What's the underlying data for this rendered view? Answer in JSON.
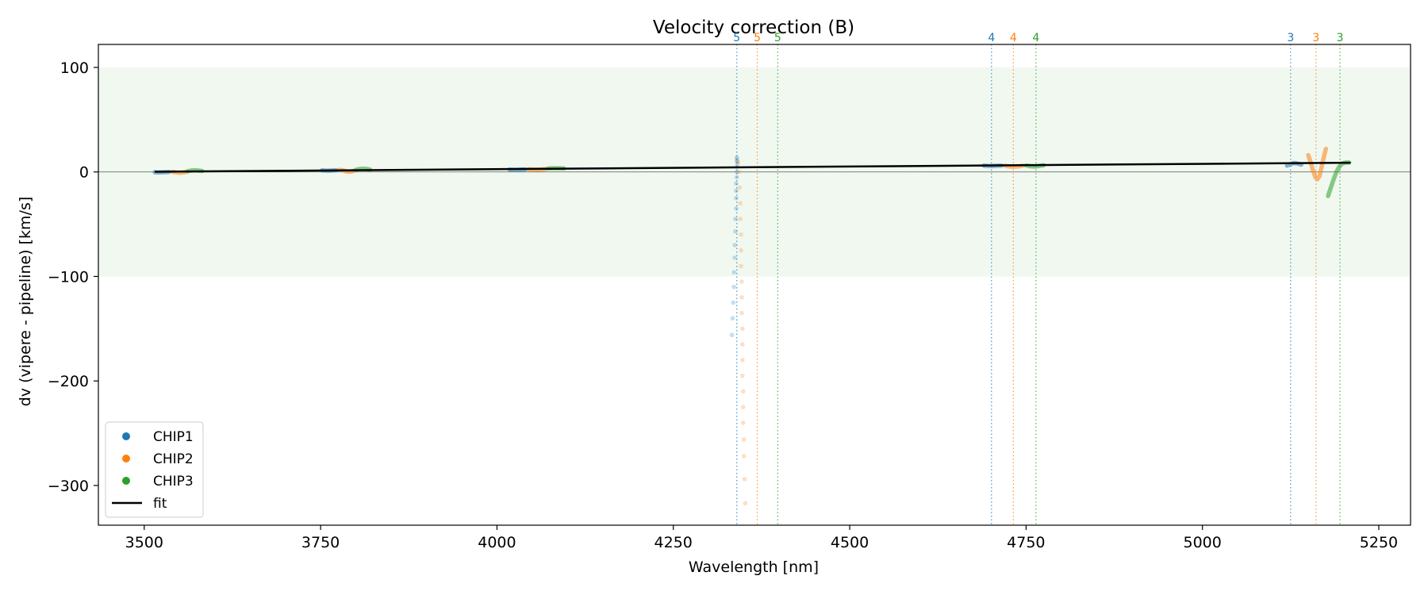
{
  "chart_data": {
    "type": "scatter",
    "title": "Velocity correction (B)",
    "xlabel": "Wavelength [nm]",
    "ylabel": "dv (vipere - pipeline) [km/s]",
    "xlim": [
      3435,
      5295
    ],
    "ylim": [
      -338,
      122
    ],
    "xticks": [
      3500,
      3750,
      4000,
      4250,
      4500,
      4750,
      5000,
      5250
    ],
    "yticks": [
      -300,
      -200,
      -100,
      0,
      100
    ],
    "shaded_band": {
      "y0": -100,
      "y1": 100,
      "color": "#2ca02c"
    },
    "zero_line": 0,
    "grid": false,
    "legend_position": "lower-left",
    "colors": {
      "CHIP1": "#1f77b4",
      "CHIP2": "#ff7f0e",
      "CHIP3": "#2ca02c",
      "fit": "#000000"
    },
    "series": [
      {
        "name": "CHIP1",
        "color": "#1f77b4",
        "segments": [
          {
            "x0": 3515,
            "x1": 3535,
            "points": [
              [
                3515,
                -0.3
              ],
              [
                3520,
                -0.5
              ],
              [
                3525,
                -0.4
              ],
              [
                3530,
                -0.2
              ],
              [
                3535,
                0.0
              ]
            ]
          },
          {
            "x0": 3752,
            "x1": 3772,
            "points": [
              [
                3752,
                1.5
              ],
              [
                3757,
                1.3
              ],
              [
                3762,
                1.2
              ],
              [
                3767,
                1.4
              ],
              [
                3772,
                1.6
              ]
            ]
          },
          {
            "x0": 4018,
            "x1": 4040,
            "points": [
              [
                4018,
                2.3
              ],
              [
                4023,
                2.1
              ],
              [
                4028,
                2.0
              ],
              [
                4034,
                2.2
              ],
              [
                4040,
                2.4
              ]
            ]
          },
          {
            "x0": 4690,
            "x1": 4715,
            "points": [
              [
                4690,
                6.0
              ],
              [
                4696,
                5.8
              ],
              [
                4702,
                5.7
              ],
              [
                4709,
                5.9
              ],
              [
                4715,
                6.1
              ]
            ]
          },
          {
            "x0": 5120,
            "x1": 5140,
            "points": [
              [
                5120,
                6.0
              ],
              [
                5125,
                7.5
              ],
              [
                5130,
                8.5
              ],
              [
                5135,
                8.0
              ],
              [
                5140,
                7.0
              ]
            ]
          }
        ],
        "scatter_points": [
          [
            4340,
            14
          ],
          [
            4340,
            12
          ],
          [
            4340,
            10
          ],
          [
            4341,
            8
          ],
          [
            4340,
            5
          ],
          [
            4340,
            0
          ],
          [
            4340,
            -5
          ],
          [
            4339,
            -11
          ],
          [
            4339,
            -18
          ],
          [
            4339,
            -25
          ],
          [
            4339,
            -35
          ],
          [
            4338,
            -45
          ],
          [
            4338,
            -57
          ],
          [
            4337,
            -70
          ],
          [
            4337,
            -82
          ],
          [
            4336,
            -96
          ],
          [
            4336,
            -110
          ],
          [
            4335,
            -125
          ],
          [
            4334,
            -140
          ],
          [
            4333,
            -156
          ]
        ]
      },
      {
        "name": "CHIP2",
        "color": "#ff7f0e",
        "segments": [
          {
            "x0": 3540,
            "x1": 3560,
            "points": [
              [
                3540,
                0.2
              ],
              [
                3545,
                -0.4
              ],
              [
                3550,
                -0.8
              ],
              [
                3555,
                -0.5
              ],
              [
                3560,
                0.1
              ]
            ]
          },
          {
            "x0": 3777,
            "x1": 3797,
            "points": [
              [
                3777,
                2.0
              ],
              [
                3782,
                1.5
              ],
              [
                3787,
                0.5
              ],
              [
                3792,
                0.2
              ],
              [
                3797,
                1.0
              ]
            ]
          },
          {
            "x0": 4045,
            "x1": 4068,
            "points": [
              [
                4045,
                2.6
              ],
              [
                4050,
                2.4
              ],
              [
                4056,
                2.2
              ],
              [
                4062,
                2.4
              ],
              [
                4068,
                2.7
              ]
            ]
          },
          {
            "x0": 4720,
            "x1": 4745,
            "points": [
              [
                4720,
                6.0
              ],
              [
                4726,
                5.3
              ],
              [
                4732,
                5.0
              ],
              [
                4739,
                5.3
              ],
              [
                4745,
                6.0
              ]
            ]
          },
          {
            "x0": 5150,
            "x1": 5175,
            "points": [
              [
                5150,
                16
              ],
              [
                5153,
                10
              ],
              [
                5156,
                3
              ],
              [
                5160,
                -5
              ],
              [
                5163,
                -7
              ],
              [
                5166,
                -4
              ],
              [
                5169,
                5
              ],
              [
                5172,
                14
              ],
              [
                5175,
                22
              ]
            ]
          }
        ],
        "scatter_points": [
          [
            4342,
            10
          ],
          [
            4343,
            0
          ],
          [
            4344,
            -15
          ],
          [
            4345,
            -30
          ],
          [
            4345,
            -45
          ],
          [
            4346,
            -60
          ],
          [
            4346,
            -75
          ],
          [
            4346,
            -90
          ],
          [
            4347,
            -105
          ],
          [
            4347,
            -120
          ],
          [
            4347,
            -135
          ],
          [
            4348,
            -150
          ],
          [
            4348,
            -165
          ],
          [
            4348,
            -180
          ],
          [
            4348,
            -195
          ],
          [
            4349,
            -210
          ],
          [
            4349,
            -225
          ],
          [
            4349,
            -240
          ],
          [
            4350,
            -256
          ],
          [
            4350,
            -272
          ],
          [
            4351,
            -294
          ],
          [
            4352,
            -317
          ]
        ]
      },
      {
        "name": "CHIP3",
        "color": "#2ca02c",
        "segments": [
          {
            "x0": 3562,
            "x1": 3582,
            "points": [
              [
                3562,
                0.8
              ],
              [
                3567,
                1.4
              ],
              [
                3572,
                1.6
              ],
              [
                3577,
                1.3
              ],
              [
                3582,
                0.9
              ]
            ]
          },
          {
            "x0": 3800,
            "x1": 3820,
            "points": [
              [
                3800,
                2.0
              ],
              [
                3805,
                2.8
              ],
              [
                3810,
                3.1
              ],
              [
                3815,
                2.8
              ],
              [
                3820,
                2.3
              ]
            ]
          },
          {
            "x0": 4072,
            "x1": 4095,
            "points": [
              [
                4072,
                3.2
              ],
              [
                4077,
                3.5
              ],
              [
                4083,
                3.6
              ],
              [
                4089,
                3.5
              ],
              [
                4095,
                3.3
              ]
            ]
          },
          {
            "x0": 4750,
            "x1": 4775,
            "points": [
              [
                4750,
                6.2
              ],
              [
                4756,
                5.5
              ],
              [
                4762,
                5.2
              ],
              [
                4768,
                5.6
              ],
              [
                4775,
                6.4
              ]
            ]
          },
          {
            "x0": 5178,
            "x1": 5208,
            "points": [
              [
                5178,
                -23
              ],
              [
                5182,
                -15
              ],
              [
                5186,
                -7
              ],
              [
                5190,
                0
              ],
              [
                5194,
                5
              ],
              [
                5198,
                8
              ],
              [
                5203,
                9
              ],
              [
                5208,
                9
              ]
            ]
          }
        ],
        "scatter_points": []
      },
      {
        "name": "fit",
        "color": "#000000",
        "line": [
          [
            3515,
            0.2
          ],
          [
            5210,
            8.8
          ]
        ]
      }
    ],
    "order_markers": [
      {
        "x": 4340,
        "label": "5",
        "color": "#1f77b4"
      },
      {
        "x": 4369,
        "label": "5",
        "color": "#ff7f0e"
      },
      {
        "x": 4398,
        "label": "5",
        "color": "#2ca02c"
      },
      {
        "x": 4701,
        "label": "4",
        "color": "#1f77b4"
      },
      {
        "x": 4732,
        "label": "4",
        "color": "#ff7f0e"
      },
      {
        "x": 4764,
        "label": "4",
        "color": "#2ca02c"
      },
      {
        "x": 5125,
        "label": "3",
        "color": "#1f77b4"
      },
      {
        "x": 5161,
        "label": "3",
        "color": "#ff7f0e"
      },
      {
        "x": 5195,
        "label": "3",
        "color": "#2ca02c"
      }
    ],
    "legend": [
      {
        "label": "CHIP1",
        "marker": "dot",
        "color": "#1f77b4"
      },
      {
        "label": "CHIP2",
        "marker": "dot",
        "color": "#ff7f0e"
      },
      {
        "label": "CHIP3",
        "marker": "dot",
        "color": "#2ca02c"
      },
      {
        "label": "fit",
        "marker": "line",
        "color": "#000000"
      }
    ]
  }
}
